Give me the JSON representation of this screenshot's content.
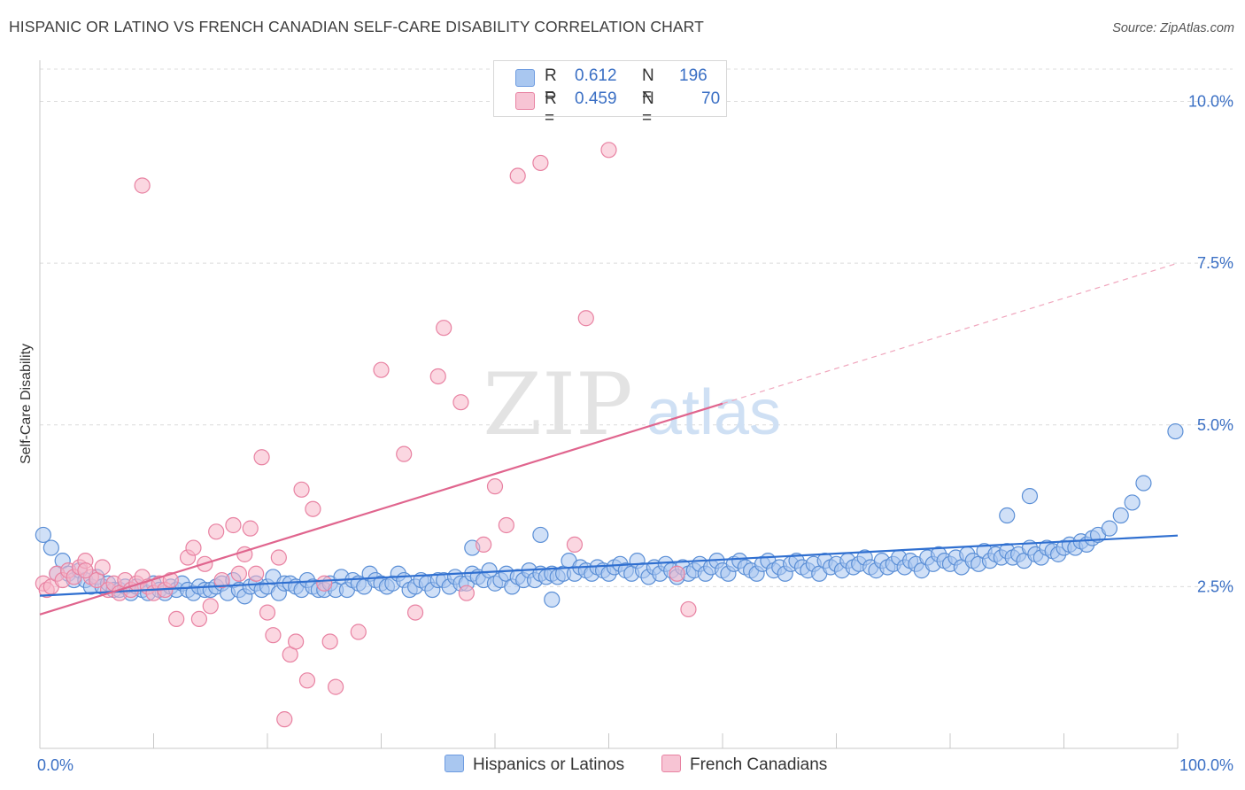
{
  "title": "HISPANIC OR LATINO VS FRENCH CANADIAN SELF-CARE DISABILITY CORRELATION CHART",
  "source": "Source: ZipAtlas.com",
  "watermark": {
    "zip": "ZIP",
    "atlas": "atlas"
  },
  "legend_top": [
    {
      "r_label": "R =",
      "r_value": "0.612",
      "n_label": "N =",
      "n_value": "196",
      "color": "#a9c7f0"
    },
    {
      "r_label": "R =",
      "r_value": "0.459",
      "n_label": "N =",
      "n_value": "70",
      "color": "#f7b6c9"
    }
  ],
  "legend_bottom": [
    {
      "label": "Hispanics or Latinos",
      "color": "#a9c7f0"
    },
    {
      "label": "French Canadians",
      "color": "#f7b6c9"
    }
  ],
  "chart_data": {
    "type": "scatter",
    "title": "HISPANIC OR LATINO VS FRENCH CANADIAN SELF-CARE DISABILITY CORRELATION CHART",
    "xlabel": "",
    "ylabel": "Self-Care Disability",
    "xlim": [
      0,
      100
    ],
    "ylim": [
      0,
      10.5
    ],
    "x_tick_labels": [
      "0.0%",
      "100.0%"
    ],
    "y_ticks": [
      2.5,
      5.0,
      7.5,
      10.0
    ],
    "y_tick_labels": [
      "2.5%",
      "5.0%",
      "7.5%",
      "10.0%"
    ],
    "grid": true,
    "legend_position": "top-center",
    "series": [
      {
        "name": "Hispanics or Latinos",
        "color": "#5b8fd6",
        "fill": "#a9c7f0",
        "trend": {
          "x": [
            0,
            100
          ],
          "y": [
            2.36,
            3.29
          ],
          "style": "solid",
          "color": "#2f6fd0"
        },
        "points": [
          [
            0.3,
            3.3
          ],
          [
            1,
            3.1
          ],
          [
            1.5,
            2.7
          ],
          [
            2,
            2.9
          ],
          [
            2.5,
            2.7
          ],
          [
            3,
            2.6
          ],
          [
            3.5,
            2.75
          ],
          [
            4,
            2.6
          ],
          [
            4.5,
            2.5
          ],
          [
            5,
            2.65
          ],
          [
            5.5,
            2.5
          ],
          [
            6,
            2.55
          ],
          [
            6.5,
            2.45
          ],
          [
            7,
            2.45
          ],
          [
            7.5,
            2.5
          ],
          [
            8,
            2.4
          ],
          [
            8.5,
            2.5
          ],
          [
            9,
            2.45
          ],
          [
            9.5,
            2.4
          ],
          [
            10,
            2.55
          ],
          [
            10.5,
            2.45
          ],
          [
            11,
            2.4
          ],
          [
            11.5,
            2.5
          ],
          [
            12,
            2.45
          ],
          [
            12.5,
            2.55
          ],
          [
            13,
            2.45
          ],
          [
            13.5,
            2.4
          ],
          [
            14,
            2.5
          ],
          [
            14.5,
            2.45
          ],
          [
            15,
            2.45
          ],
          [
            15.5,
            2.5
          ],
          [
            16,
            2.55
          ],
          [
            16.5,
            2.4
          ],
          [
            17,
            2.6
          ],
          [
            17.5,
            2.45
          ],
          [
            18,
            2.35
          ],
          [
            18.5,
            2.5
          ],
          [
            19,
            2.55
          ],
          [
            19.5,
            2.45
          ],
          [
            20,
            2.5
          ],
          [
            20.5,
            2.65
          ],
          [
            21,
            2.4
          ],
          [
            21.5,
            2.55
          ],
          [
            22,
            2.55
          ],
          [
            22.5,
            2.5
          ],
          [
            23,
            2.45
          ],
          [
            23.5,
            2.6
          ],
          [
            24,
            2.5
          ],
          [
            24.5,
            2.45
          ],
          [
            25,
            2.45
          ],
          [
            25.5,
            2.55
          ],
          [
            26,
            2.45
          ],
          [
            26.5,
            2.65
          ],
          [
            27,
            2.45
          ],
          [
            27.5,
            2.6
          ],
          [
            28,
            2.55
          ],
          [
            28.5,
            2.5
          ],
          [
            29,
            2.7
          ],
          [
            29.5,
            2.6
          ],
          [
            30,
            2.55
          ],
          [
            30.5,
            2.5
          ],
          [
            31,
            2.55
          ],
          [
            31.5,
            2.7
          ],
          [
            32,
            2.6
          ],
          [
            32.5,
            2.45
          ],
          [
            33,
            2.5
          ],
          [
            33.5,
            2.6
          ],
          [
            34,
            2.55
          ],
          [
            34.5,
            2.45
          ],
          [
            35,
            2.6
          ],
          [
            35.5,
            2.6
          ],
          [
            36,
            2.5
          ],
          [
            36.5,
            2.65
          ],
          [
            37,
            2.55
          ],
          [
            37.5,
            2.55
          ],
          [
            38,
            2.7
          ],
          [
            38.5,
            2.65
          ],
          [
            39,
            2.6
          ],
          [
            39.5,
            2.75
          ],
          [
            40,
            2.55
          ],
          [
            40.5,
            2.6
          ],
          [
            41,
            2.7
          ],
          [
            41.5,
            2.5
          ],
          [
            42,
            2.65
          ],
          [
            42.5,
            2.6
          ],
          [
            43,
            2.75
          ],
          [
            43.5,
            2.6
          ],
          [
            44,
            2.7
          ],
          [
            44.5,
            2.65
          ],
          [
            45,
            2.7
          ],
          [
            45.5,
            2.65
          ],
          [
            46,
            2.7
          ],
          [
            46.5,
            2.9
          ],
          [
            47,
            2.7
          ],
          [
            47.5,
            2.8
          ],
          [
            48,
            2.75
          ],
          [
            48.5,
            2.7
          ],
          [
            49,
            2.8
          ],
          [
            49.5,
            2.75
          ],
          [
            50,
            2.7
          ],
          [
            50.5,
            2.8
          ],
          [
            51,
            2.85
          ],
          [
            51.5,
            2.75
          ],
          [
            52,
            2.7
          ],
          [
            52.5,
            2.9
          ],
          [
            53,
            2.75
          ],
          [
            53.5,
            2.65
          ],
          [
            54,
            2.8
          ],
          [
            54.5,
            2.7
          ],
          [
            55,
            2.85
          ],
          [
            55.5,
            2.75
          ],
          [
            56,
            2.65
          ],
          [
            56.5,
            2.8
          ],
          [
            57,
            2.7
          ],
          [
            57.5,
            2.75
          ],
          [
            58,
            2.85
          ],
          [
            58.5,
            2.7
          ],
          [
            59,
            2.8
          ],
          [
            59.5,
            2.9
          ],
          [
            60,
            2.75
          ],
          [
            60.5,
            2.7
          ],
          [
            61,
            2.85
          ],
          [
            61.5,
            2.9
          ],
          [
            62,
            2.8
          ],
          [
            62.5,
            2.75
          ],
          [
            63,
            2.7
          ],
          [
            63.5,
            2.85
          ],
          [
            64,
            2.9
          ],
          [
            64.5,
            2.75
          ],
          [
            65,
            2.8
          ],
          [
            65.5,
            2.7
          ],
          [
            66,
            2.85
          ],
          [
            66.5,
            2.9
          ],
          [
            67,
            2.8
          ],
          [
            67.5,
            2.75
          ],
          [
            68,
            2.85
          ],
          [
            68.5,
            2.7
          ],
          [
            69,
            2.9
          ],
          [
            69.5,
            2.8
          ],
          [
            70,
            2.85
          ],
          [
            70.5,
            2.75
          ],
          [
            71,
            2.9
          ],
          [
            71.5,
            2.8
          ],
          [
            72,
            2.85
          ],
          [
            72.5,
            2.95
          ],
          [
            73,
            2.8
          ],
          [
            73.5,
            2.75
          ],
          [
            74,
            2.9
          ],
          [
            74.5,
            2.8
          ],
          [
            75,
            2.85
          ],
          [
            75.5,
            2.95
          ],
          [
            76,
            2.8
          ],
          [
            76.5,
            2.9
          ],
          [
            77,
            2.85
          ],
          [
            77.5,
            2.75
          ],
          [
            78,
            2.95
          ],
          [
            78.5,
            2.85
          ],
          [
            79,
            3.0
          ],
          [
            79.5,
            2.9
          ],
          [
            80,
            2.85
          ],
          [
            80.5,
            2.95
          ],
          [
            81,
            2.8
          ],
          [
            81.5,
            3.0
          ],
          [
            82,
            2.9
          ],
          [
            82.5,
            2.85
          ],
          [
            83,
            3.05
          ],
          [
            83.5,
            2.9
          ],
          [
            84,
            3.0
          ],
          [
            84.5,
            2.95
          ],
          [
            85,
            3.05
          ],
          [
            85.5,
            2.95
          ],
          [
            86,
            3.0
          ],
          [
            86.5,
            2.9
          ],
          [
            87,
            3.1
          ],
          [
            87.5,
            3.0
          ],
          [
            88,
            2.95
          ],
          [
            88.5,
            3.1
          ],
          [
            89,
            3.05
          ],
          [
            89.5,
            3.0
          ],
          [
            90,
            3.1
          ],
          [
            90.5,
            3.15
          ],
          [
            91,
            3.1
          ],
          [
            91.5,
            3.2
          ],
          [
            92,
            3.15
          ],
          [
            92.5,
            3.25
          ],
          [
            93,
            3.3
          ],
          [
            94,
            3.4
          ],
          [
            95,
            3.6
          ],
          [
            96,
            3.8
          ],
          [
            97,
            4.1
          ],
          [
            99.8,
            4.9
          ],
          [
            87,
            3.9
          ],
          [
            85,
            3.6
          ],
          [
            44,
            3.3
          ],
          [
            38,
            3.1
          ],
          [
            45,
            2.3
          ]
        ]
      },
      {
        "name": "French Canadians",
        "color": "#e882a2",
        "fill": "#f7b6c9",
        "trend": {
          "x": [
            0,
            60
          ],
          "y": [
            2.07,
            5.33
          ],
          "style": "solid",
          "color": "#e0658e",
          "dashed_extension": {
            "x": [
              60,
              100
            ],
            "y": [
              5.33,
              7.5
            ]
          }
        },
        "points": [
          [
            0.3,
            2.55
          ],
          [
            0.6,
            2.45
          ],
          [
            1,
            2.5
          ],
          [
            1.5,
            2.7
          ],
          [
            2,
            2.6
          ],
          [
            2.5,
            2.75
          ],
          [
            3,
            2.65
          ],
          [
            3.5,
            2.8
          ],
          [
            4,
            2.9
          ],
          [
            4.5,
            2.65
          ],
          [
            5,
            2.6
          ],
          [
            5.5,
            2.8
          ],
          [
            6,
            2.45
          ],
          [
            6.5,
            2.55
          ],
          [
            7,
            2.4
          ],
          [
            7.5,
            2.6
          ],
          [
            8,
            2.45
          ],
          [
            8.5,
            2.55
          ],
          [
            9,
            2.65
          ],
          [
            9.5,
            2.5
          ],
          [
            10,
            2.4
          ],
          [
            10.5,
            2.55
          ],
          [
            11,
            2.45
          ],
          [
            11.5,
            2.6
          ],
          [
            12,
            2.0
          ],
          [
            13,
            2.95
          ],
          [
            13.5,
            3.1
          ],
          [
            14,
            2.0
          ],
          [
            14.5,
            2.85
          ],
          [
            15,
            2.2
          ],
          [
            15.5,
            3.35
          ],
          [
            16,
            2.6
          ],
          [
            17,
            3.45
          ],
          [
            17.5,
            2.7
          ],
          [
            18,
            3.0
          ],
          [
            18.5,
            3.4
          ],
          [
            19,
            2.7
          ],
          [
            19.5,
            4.5
          ],
          [
            20,
            2.1
          ],
          [
            20.5,
            1.75
          ],
          [
            21,
            2.95
          ],
          [
            21.5,
            0.45
          ],
          [
            22,
            1.45
          ],
          [
            22.5,
            1.65
          ],
          [
            23,
            4.0
          ],
          [
            23.5,
            1.05
          ],
          [
            24,
            3.7
          ],
          [
            25,
            2.55
          ],
          [
            25.5,
            1.65
          ],
          [
            26,
            0.95
          ],
          [
            28,
            1.8
          ],
          [
            30,
            5.85
          ],
          [
            32,
            4.55
          ],
          [
            33,
            2.1
          ],
          [
            35,
            5.75
          ],
          [
            35.5,
            6.5
          ],
          [
            37,
            5.35
          ],
          [
            37.5,
            2.4
          ],
          [
            39,
            3.15
          ],
          [
            40,
            4.05
          ],
          [
            41,
            3.45
          ],
          [
            42,
            8.85
          ],
          [
            44,
            9.05
          ],
          [
            47,
            3.15
          ],
          [
            48,
            6.65
          ],
          [
            50,
            9.25
          ],
          [
            56,
            2.7
          ],
          [
            57,
            2.15
          ],
          [
            9,
            8.7
          ],
          [
            4,
            2.75
          ]
        ]
      }
    ]
  }
}
